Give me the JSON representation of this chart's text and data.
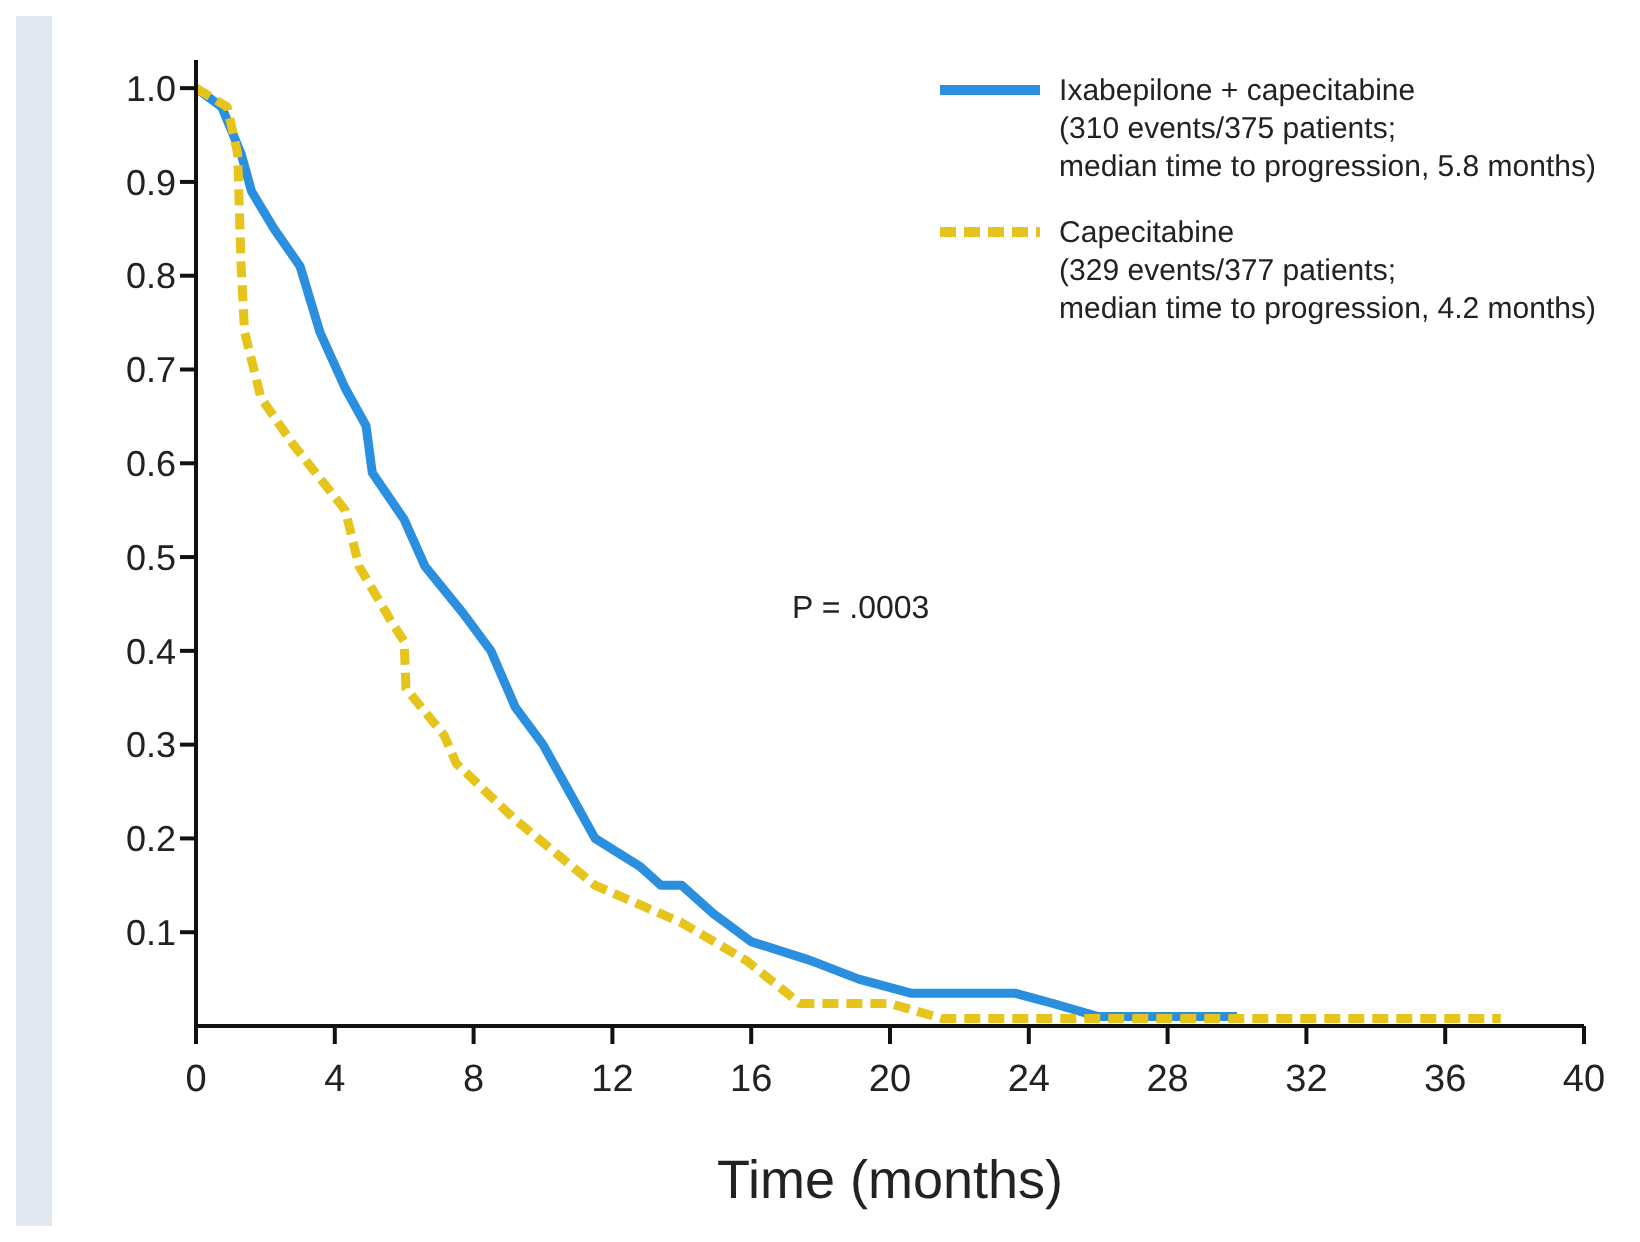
{
  "chart_data": {
    "type": "line",
    "xlabel": "Time (months)",
    "xlim": [
      0,
      40
    ],
    "xticks": [
      0,
      4,
      8,
      12,
      16,
      20,
      24,
      28,
      32,
      36,
      40
    ],
    "ylim": [
      0,
      1.03
    ],
    "yticks": [
      0.1,
      0.2,
      0.3,
      0.4,
      0.5,
      0.6,
      0.7,
      0.8,
      0.9,
      {
        "value": 1,
        "label": "1.0"
      }
    ],
    "grid": false,
    "legend": "top right",
    "marker": "none",
    "annotations": [
      "P = .0003"
    ],
    "series": [
      {
        "name": "Ixabepilone + capecitabine\n(310 events/375 patients;\nmedian time to progression, 5.8 months)",
        "color": "#2b8fe0",
        "line_style": "solid",
        "x": [
          0,
          0.74,
          1.3,
          1.6,
          2.25,
          3.0,
          3.57,
          4.3,
          4.9,
          5.08,
          6.0,
          6.6,
          7.7,
          8.5,
          9.2,
          10.0,
          10.75,
          11.5,
          12.8,
          13.4,
          14.0,
          14.9,
          16.0,
          17.7,
          19.1,
          20.6,
          23.6,
          24.7,
          26.0,
          30.0
        ],
        "values": [
          1.0,
          0.98,
          0.93,
          0.89,
          0.85,
          0.81,
          0.74,
          0.68,
          0.64,
          0.59,
          0.54,
          0.49,
          0.44,
          0.4,
          0.34,
          0.3,
          0.25,
          0.2,
          0.17,
          0.15,
          0.15,
          0.12,
          0.09,
          0.07,
          0.05,
          0.035,
          0.035,
          0.024,
          0.01,
          0.01
        ]
      },
      {
        "name": "Capecitabine\n(329 events/377 patients;\nmedian time to progression, 4.2 months)",
        "color": "#e6c41c",
        "line_style": "dashed",
        "x": [
          0,
          0.9,
          1.2,
          1.3,
          1.4,
          1.87,
          2.8,
          4.3,
          4.7,
          5.65,
          6.0,
          6.05,
          7.15,
          7.5,
          9.2,
          11.5,
          14.0,
          15.85,
          17.4,
          20.0,
          21.5,
          37.6
        ],
        "values": [
          1.0,
          0.98,
          0.93,
          0.81,
          0.74,
          0.67,
          0.62,
          0.55,
          0.49,
          0.43,
          0.41,
          0.36,
          0.31,
          0.28,
          0.22,
          0.15,
          0.11,
          0.07,
          0.024,
          0.024,
          0.008,
          0.008
        ]
      }
    ]
  }
}
